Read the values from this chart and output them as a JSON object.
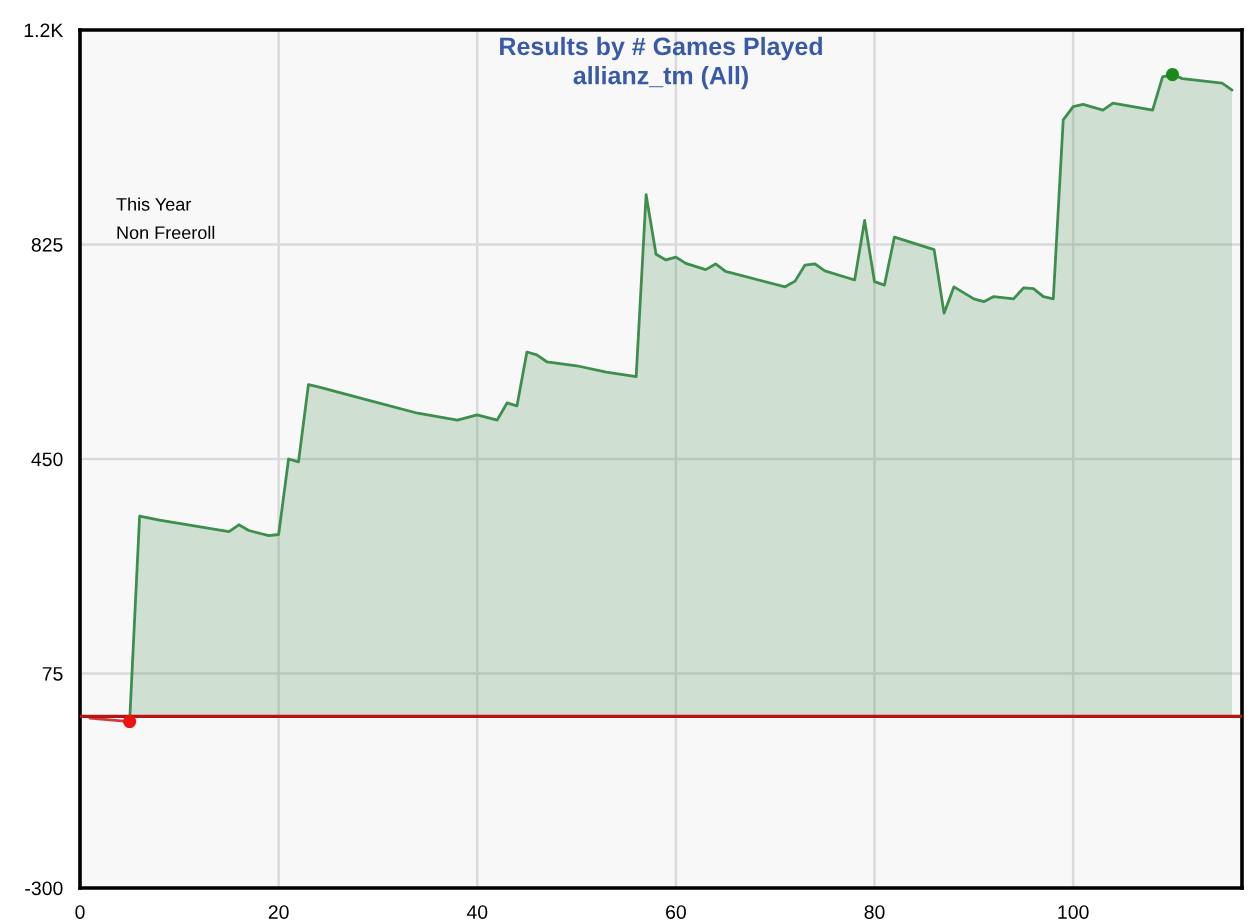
{
  "chart_data": {
    "type": "area",
    "title": "Results by # Games Played",
    "subtitle": "allianz_tm (All)",
    "annotations": [
      "This Year",
      "Non Freeroll"
    ],
    "xlim": [
      0,
      117
    ],
    "xticks": [
      0,
      20,
      40,
      60,
      80,
      100
    ],
    "ylim": [
      -300,
      1200
    ],
    "yticks": [
      -300,
      75,
      450,
      825,
      {
        "value": 1200,
        "label": "1.2K"
      }
    ],
    "grid": true,
    "ref_lines": [
      {
        "axis": "y",
        "value": 0,
        "color": "#b81414"
      }
    ],
    "series": [
      {
        "type": "line",
        "color": "#d23a3a",
        "x": [
          1,
          5
        ],
        "values": [
          -3,
          -9
        ]
      },
      {
        "color": "#3e8e4e",
        "x": [
          5,
          6,
          8,
          15,
          16,
          17,
          19,
          20,
          21,
          22,
          23,
          24,
          29,
          34,
          38,
          40,
          42,
          43,
          44,
          45,
          46,
          47,
          50,
          53,
          56,
          57,
          58,
          59,
          60,
          61,
          63,
          64,
          65,
          71,
          72,
          73,
          74,
          75,
          78,
          79,
          80,
          81,
          82,
          86,
          87,
          88,
          90,
          91,
          92,
          94,
          95,
          96,
          97,
          98,
          99,
          100,
          101,
          103,
          104,
          106,
          108,
          109,
          110,
          111,
          115,
          116
        ],
        "values": [
          -9,
          350,
          343,
          323,
          335,
          325,
          316,
          318,
          450,
          445,
          580,
          576,
          553,
          530,
          518,
          527,
          518,
          548,
          543,
          637,
          632,
          620,
          613,
          602,
          594,
          912,
          808,
          798,
          803,
          792,
          781,
          791,
          778,
          751,
          761,
          789,
          791,
          779,
          763,
          867,
          760,
          754,
          838,
          816,
          705,
          751,
          730,
          725,
          734,
          730,
          749,
          748,
          734,
          730,
          1043,
          1066,
          1070,
          1060,
          1072,
          1066,
          1060,
          1118,
          1122,
          1115,
          1107,
          1095
        ]
      },
      {
        "type": "scatter",
        "color": "#ee1111",
        "marker": "circle",
        "x": [
          5
        ],
        "values": [
          -9
        ]
      },
      {
        "type": "scatter",
        "color": "#1a8a1a",
        "marker": "circle",
        "x": [
          110
        ],
        "values": [
          1122
        ]
      }
    ]
  }
}
